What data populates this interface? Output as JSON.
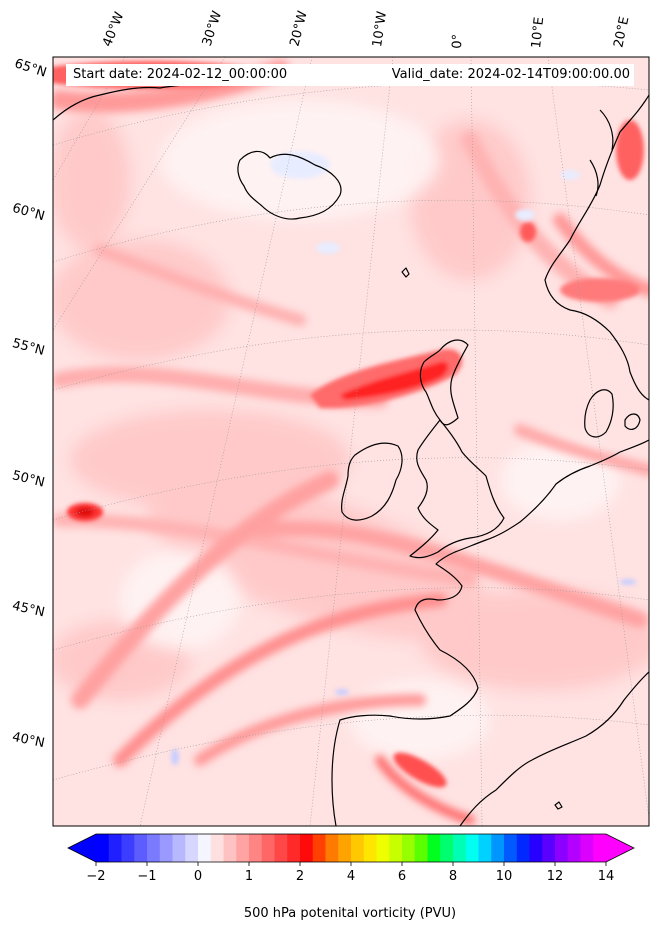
{
  "map": {
    "start_label": "Start date: 2024-02-12_00:00:00",
    "valid_label": "Valid_date: 2024-02-14T09:00:00.00",
    "lon_labels": [
      "40°W",
      "30°W",
      "20°W",
      "10°W",
      "0°",
      "10°E",
      "20°E"
    ],
    "lat_labels": [
      "65°N",
      "60°N",
      "55°N",
      "50°N",
      "45°N",
      "40°N"
    ],
    "projection": "conic",
    "extent": {
      "lon_min": -45,
      "lon_max": 22,
      "lat_min": 37,
      "lat_max": 66
    },
    "field": "500 hPa potential vorticity",
    "coastline_color": "#000000",
    "gridlines": "dotted"
  },
  "colorbar": {
    "title": "500 hPa potenital vorticity (PVU)",
    "tick_labels": [
      "−2",
      "−1",
      "0",
      "1",
      "2",
      "4",
      "6",
      "8",
      "10",
      "12",
      "14"
    ],
    "ticks": [
      -2,
      -1,
      0,
      1,
      2,
      4,
      6,
      8,
      10,
      12,
      14
    ],
    "extend": "both",
    "levels": [
      -2,
      -1.75,
      -1.5,
      -1.25,
      -1,
      -0.75,
      -0.5,
      -0.25,
      0,
      0.25,
      0.5,
      0.75,
      1,
      1.25,
      1.5,
      1.75,
      2,
      2.5,
      3,
      3.5,
      4,
      4.5,
      5,
      5.5,
      6,
      6.5,
      7,
      7.5,
      8,
      8.5,
      9,
      9.5,
      10,
      10.5,
      11,
      11.5,
      12,
      12.5,
      13,
      13.5,
      14
    ],
    "colors": [
      "#0000ff",
      "#1f1fff",
      "#3d3dff",
      "#5c5cff",
      "#7a7aff",
      "#9999ff",
      "#b8b8ff",
      "#d6d6ff",
      "#f5f5ff",
      "#ffe0e0",
      "#ffc2c2",
      "#ffa3a3",
      "#ff8585",
      "#ff6666",
      "#ff4747",
      "#ff2929",
      "#ff0a0a",
      "#ff4000",
      "#ff7a00",
      "#ffa300",
      "#ffc800",
      "#ffe600",
      "#f0ff00",
      "#c8ff00",
      "#96ff00",
      "#5aff00",
      "#00ff1e",
      "#00ff6e",
      "#00ffb4",
      "#00fff0",
      "#00d2ff",
      "#0096ff",
      "#005aff",
      "#0028ff",
      "#2800ff",
      "#5a00ff",
      "#8c00ff",
      "#b400ff",
      "#dc00ff",
      "#ff00ff"
    ]
  }
}
